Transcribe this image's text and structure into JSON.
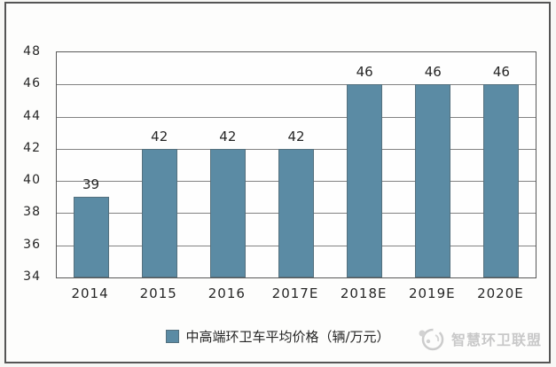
{
  "chart_data": {
    "type": "bar",
    "title": "",
    "xlabel": "",
    "ylabel": "",
    "categories": [
      "2014",
      "2015",
      "2016",
      "2017E",
      "2018E",
      "2019E",
      "2020E"
    ],
    "values": [
      39,
      42,
      42,
      42,
      46,
      46,
      46
    ],
    "data_labels": [
      "39",
      "42",
      "42",
      "42",
      "46",
      "46",
      "46"
    ],
    "series_name": "中高端环卫车平均价格（辆/万元）",
    "ylim": [
      34,
      48
    ],
    "yticks": [
      34,
      36,
      38,
      40,
      42,
      44,
      46,
      48
    ],
    "grid": "horizontal",
    "legend_position": "bottom-center"
  },
  "legend": {
    "label": "中高端环卫车平均价格（辆/万元）"
  },
  "watermark": {
    "text": "智慧环卫联盟",
    "logo": "round-mascot-logo"
  },
  "colors": {
    "bar": "#5b8ba4",
    "bar_border": "#54707e",
    "grid": "#828282",
    "axis": "#595959",
    "text": "#262626",
    "frame_border": "#555555",
    "watermark": "#c8c8c8",
    "background": "#fdfdfc"
  }
}
